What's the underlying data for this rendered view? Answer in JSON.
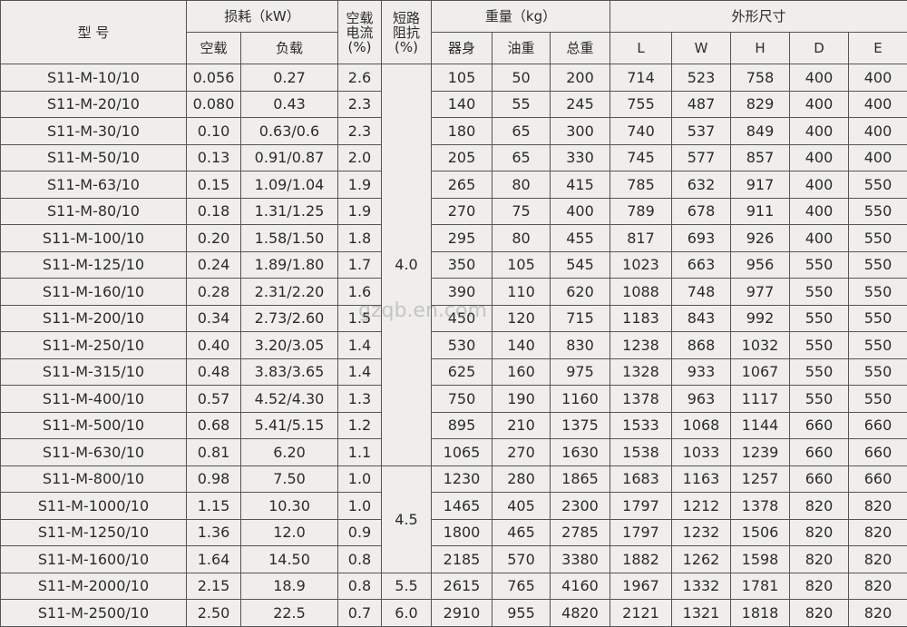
{
  "header": {
    "model": "型 号",
    "loss": "损耗（kW）",
    "no_load": "空载",
    "load": "负载",
    "current": [
      "空载",
      "电流",
      "(%)"
    ],
    "impedance": [
      "短路",
      "阻抗",
      "(%)"
    ],
    "weight": "重量（kg）",
    "body": "器身",
    "oil": "油重",
    "total": "总重",
    "dims": "外形尺寸",
    "dim_cols": [
      "L",
      "W",
      "H",
      "D",
      "E"
    ]
  },
  "table": {
    "rows": [
      [
        "S11-M-10/10",
        "0.056",
        "0.27",
        "2.6",
        "4.0",
        "105",
        "50",
        "200",
        "714",
        "523",
        "758",
        "400",
        "400"
      ],
      [
        "S11-M-20/10",
        "0.080",
        "0.43",
        "2.3",
        null,
        "140",
        "55",
        "245",
        "755",
        "487",
        "829",
        "400",
        "400"
      ],
      [
        "S11-M-30/10",
        "0.10",
        "0.63/0.6",
        "2.3",
        null,
        "180",
        "65",
        "300",
        "740",
        "537",
        "849",
        "400",
        "400"
      ],
      [
        "S11-M-50/10",
        "0.13",
        "0.91/0.87",
        "2.0",
        null,
        "205",
        "65",
        "330",
        "745",
        "577",
        "857",
        "400",
        "400"
      ],
      [
        "S11-M-63/10",
        "0.15",
        "1.09/1.04",
        "1.9",
        null,
        "265",
        "80",
        "415",
        "785",
        "632",
        "917",
        "400",
        "550"
      ],
      [
        "S11-M-80/10",
        "0.18",
        "1.31/1.25",
        "1.9",
        null,
        "270",
        "75",
        "400",
        "789",
        "678",
        "911",
        "400",
        "550"
      ],
      [
        "S11-M-100/10",
        "0.20",
        "1.58/1.50",
        "1.8",
        null,
        "295",
        "80",
        "455",
        "817",
        "693",
        "926",
        "400",
        "550"
      ],
      [
        "S11-M-125/10",
        "0.24",
        "1.89/1.80",
        "1.7",
        null,
        "350",
        "105",
        "545",
        "1023",
        "663",
        "956",
        "550",
        "550"
      ],
      [
        "S11-M-160/10",
        "0.28",
        "2.31/2.20",
        "1.6",
        null,
        "390",
        "110",
        "620",
        "1088",
        "748",
        "977",
        "550",
        "550"
      ],
      [
        "S11-M-200/10",
        "0.34",
        "2.73/2.60",
        "1.5",
        null,
        "450",
        "120",
        "715",
        "1183",
        "843",
        "992",
        "550",
        "550"
      ],
      [
        "S11-M-250/10",
        "0.40",
        "3.20/3.05",
        "1.4",
        null,
        "530",
        "140",
        "830",
        "1238",
        "868",
        "1032",
        "550",
        "550"
      ],
      [
        "S11-M-315/10",
        "0.48",
        "3.83/3.65",
        "1.4",
        null,
        "625",
        "160",
        "975",
        "1328",
        "933",
        "1067",
        "550",
        "550"
      ],
      [
        "S11-M-400/10",
        "0.57",
        "4.52/4.30",
        "1.3",
        null,
        "750",
        "190",
        "1160",
        "1378",
        "963",
        "1117",
        "550",
        "550"
      ],
      [
        "S11-M-500/10",
        "0.68",
        "5.41/5.15",
        "1.2",
        null,
        "895",
        "210",
        "1375",
        "1533",
        "1068",
        "1144",
        "660",
        "660"
      ],
      [
        "S11-M-630/10",
        "0.81",
        "6.20",
        "1.1",
        null,
        "1065",
        "270",
        "1630",
        "1538",
        "1033",
        "1239",
        "660",
        "660"
      ],
      [
        "S11-M-800/10",
        "0.98",
        "7.50",
        "1.0",
        "4.5",
        "1230",
        "280",
        "1865",
        "1683",
        "1163",
        "1257",
        "660",
        "660"
      ],
      [
        "S11-M-1000/10",
        "1.15",
        "10.30",
        "1.0",
        null,
        "1465",
        "405",
        "2300",
        "1797",
        "1212",
        "1378",
        "820",
        "820"
      ],
      [
        "S11-M-1250/10",
        "1.36",
        "12.0",
        "0.9",
        null,
        "1800",
        "465",
        "2785",
        "1797",
        "1232",
        "1506",
        "820",
        "820"
      ],
      [
        "S11-M-1600/10",
        "1.64",
        "14.50",
        "0.8",
        null,
        "2185",
        "570",
        "3380",
        "1882",
        "1262",
        "1598",
        "820",
        "820"
      ],
      [
        "S11-M-2000/10",
        "2.15",
        "18.9",
        "0.8",
        "5.5",
        "2615",
        "765",
        "4160",
        "1967",
        "1332",
        "1781",
        "820",
        "820"
      ],
      [
        "S11-M-2500/10",
        "2.50",
        "22.5",
        "0.7",
        "6.0",
        "2910",
        "955",
        "4820",
        "2121",
        "1321",
        "1818",
        "820",
        "820"
      ]
    ]
  },
  "watermark": "gzqb.en.com"
}
